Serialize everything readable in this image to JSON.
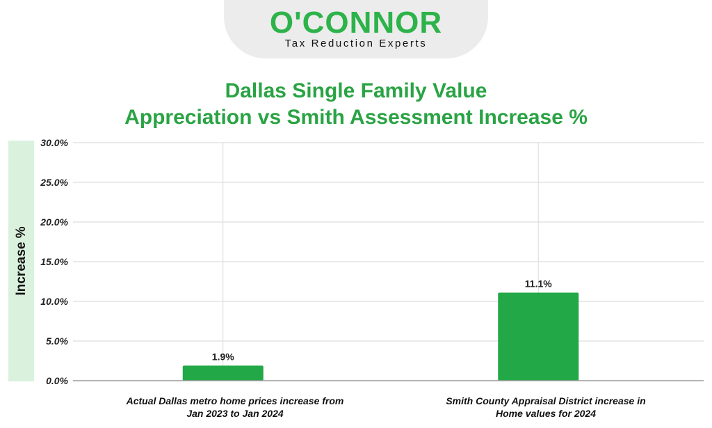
{
  "brand": {
    "name": "O'CONNOR",
    "tagline": "Tax Reduction Experts",
    "color": "#2db34a"
  },
  "chart_data": {
    "type": "bar",
    "title_line1": "Dallas Single Family Value",
    "title_line2": "Appreciation vs Smith Assessment Increase %",
    "xlabel": "",
    "ylabel": "Increase %",
    "categories_line1": [
      "Actual Dallas metro home prices increase from",
      "Smith County Appraisal District increase in"
    ],
    "categories_line2": [
      "Jan 2023 to Jan 2024",
      "Home values for 2024"
    ],
    "values": [
      1.9,
      11.1
    ],
    "value_labels": [
      "1.9%",
      "11.1%"
    ],
    "yticks": [
      0,
      5,
      10,
      15,
      20,
      25,
      30
    ],
    "ytick_labels": [
      "0.0%",
      "5.0%",
      "10.0%",
      "15.0%",
      "20.0%",
      "25.0%",
      "30.0%"
    ],
    "ylim": [
      0,
      30
    ],
    "grid": true,
    "bar_color": "#22a846"
  }
}
